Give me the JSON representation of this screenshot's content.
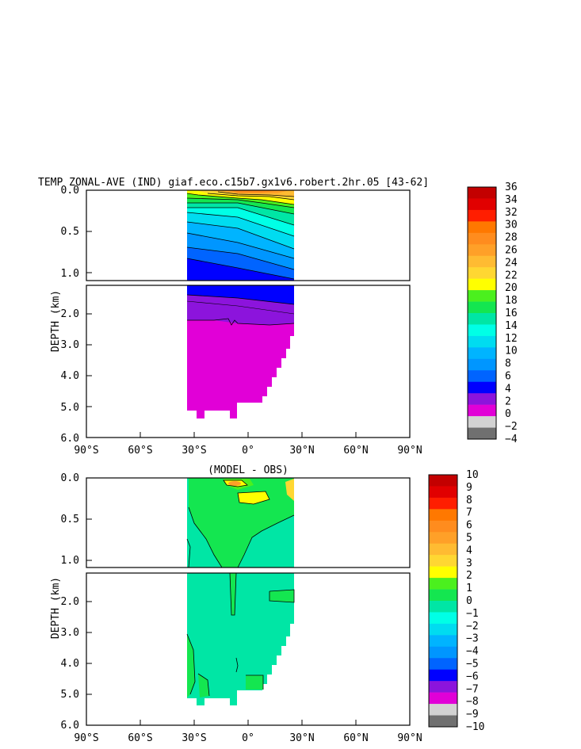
{
  "chart_data": [
    {
      "type": "heatmap",
      "title": "TEMP ZONAL-AVE (IND) giaf.eco.c15b7.gx1v6.robert.2hr.05 [43-62]",
      "ylabel": "DEPTH (km)",
      "xlabel": "",
      "x_ticks": [
        "90°S",
        "60°S",
        "30°S",
        "0°",
        "30°N",
        "60°N",
        "90°N"
      ],
      "y_ticks_upper": [
        "0.0",
        "0.5",
        "1.0"
      ],
      "y_ticks_lower": [
        "2.0",
        "3.0",
        "4.0",
        "5.0",
        "6.0"
      ],
      "xlim": [
        -90,
        90
      ],
      "ylim": [
        0,
        6.0
      ],
      "data_lat_range": [
        -34,
        25
      ],
      "contour_levels": [
        -4,
        -2,
        0,
        2,
        4,
        6,
        8,
        10,
        12,
        14,
        16,
        18,
        20,
        22,
        24,
        26,
        28,
        30,
        32,
        34,
        36
      ],
      "colorbar_labels": [
        "36",
        "34",
        "32",
        "30",
        "28",
        "26",
        "24",
        "22",
        "20",
        "18",
        "16",
        "14",
        "12",
        "10",
        "8",
        "6",
        "4",
        "2",
        "0",
        "−2",
        "−4"
      ],
      "colors": [
        "#c30000",
        "#e10000",
        "#ff1e00",
        "#ff7800",
        "#ff8c1e",
        "#ffa028",
        "#ffbb32",
        "#ffd732",
        "#ffff00",
        "#4bf01e",
        "#14e650",
        "#00e6a5",
        "#00ffe6",
        "#00dcf0",
        "#00b4ff",
        "#0096ff",
        "#0064ff",
        "#0000ff",
        "#8c14dc",
        "#e100d7",
        "#d2d2d2",
        "#707070"
      ],
      "approx_values": [
        {
          "depth_km": 0.0,
          "temp": 29
        },
        {
          "depth_km": 0.25,
          "temp": 20
        },
        {
          "depth_km": 0.5,
          "temp": 13
        },
        {
          "depth_km": 1.0,
          "temp": 6
        },
        {
          "depth_km": 2.0,
          "temp": 3
        },
        {
          "depth_km": 4.0,
          "temp": 1.5
        }
      ]
    },
    {
      "type": "heatmap",
      "title": "(MODEL - OBS)",
      "ylabel": "DEPTH (km)",
      "xlabel": "",
      "x_ticks": [
        "90°S",
        "60°S",
        "30°S",
        "0°",
        "30°N",
        "60°N",
        "90°N"
      ],
      "y_ticks_upper": [
        "0.0",
        "0.5",
        "1.0"
      ],
      "y_ticks_lower": [
        "2.0",
        "3.0",
        "4.0",
        "5.0",
        "6.0"
      ],
      "xlim": [
        -90,
        90
      ],
      "ylim": [
        0,
        6.0
      ],
      "data_lat_range": [
        -34,
        25
      ],
      "contour_levels": [
        -10,
        -9,
        -8,
        -7,
        -6,
        -5,
        -4,
        -3,
        -2,
        -1,
        0,
        1,
        2,
        3,
        4,
        5,
        6,
        7,
        8,
        9,
        10
      ],
      "colorbar_labels": [
        "10",
        "9",
        "8",
        "7",
        "6",
        "5",
        "4",
        "3",
        "2",
        "1",
        "0",
        "−1",
        "−2",
        "−3",
        "−4",
        "−5",
        "−6",
        "−7",
        "−8",
        "−9",
        "−10"
      ],
      "colors": [
        "#c30000",
        "#e10000",
        "#ff1e00",
        "#ff7800",
        "#ff8c1e",
        "#ffa028",
        "#ffbb32",
        "#ffd732",
        "#ffff00",
        "#4bf01e",
        "#14e650",
        "#00e6a5",
        "#00ffe6",
        "#00dcf0",
        "#00b4ff",
        "#0096ff",
        "#0064ff",
        "#0000ff",
        "#8c14dc",
        "#e100d7",
        "#d2d2d2",
        "#707070"
      ],
      "approx_values": [
        {
          "depth_km": 0.1,
          "lat": -5,
          "diff": 2.5
        },
        {
          "depth_km": 0.3,
          "lat": -10,
          "diff": 1
        },
        {
          "depth_km": 0.8,
          "lat": 10,
          "diff": -0.5
        },
        {
          "depth_km": 3.0,
          "lat": 0,
          "diff": -0.5
        }
      ]
    }
  ]
}
